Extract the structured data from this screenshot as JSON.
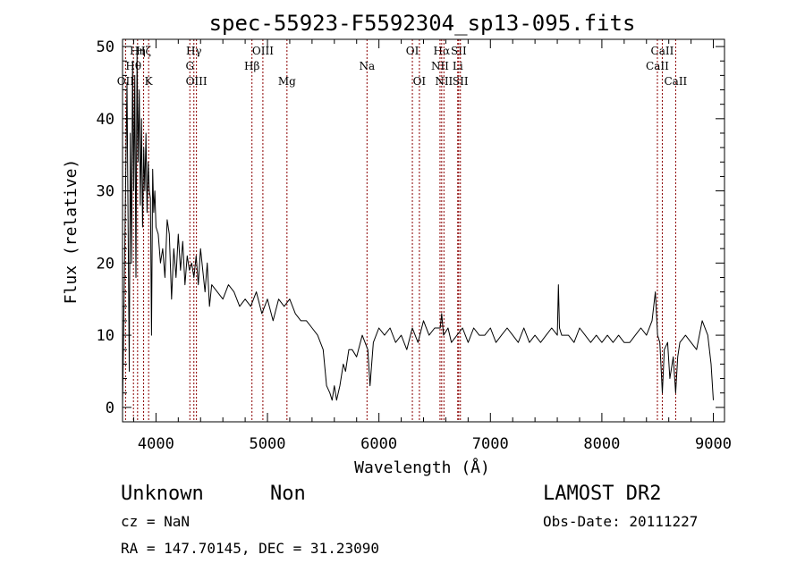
{
  "chart_data": {
    "type": "line",
    "title": "spec-55923-F5592304_sp13-095.fits",
    "xlabel": "Wavelength (Å)",
    "ylabel": "Flux (relative)",
    "xlim": [
      3700,
      9100
    ],
    "ylim": [
      -2,
      51
    ],
    "x_ticks": [
      "4000",
      "5000",
      "6000",
      "7000",
      "8000",
      "9000"
    ],
    "y_ticks": [
      "0",
      "10",
      "20",
      "30",
      "40",
      "50"
    ],
    "grid": false,
    "series": [
      {
        "x": [
          3700,
          3720,
          3740,
          3760,
          3770,
          3780,
          3790,
          3800,
          3810,
          3820,
          3830,
          3840,
          3850,
          3860,
          3870,
          3880,
          3890,
          3900,
          3910,
          3920,
          3930,
          3940,
          3950,
          3960,
          3970,
          3980,
          3990,
          4000,
          4020,
          4040,
          4060,
          4080,
          4100,
          4120,
          4140,
          4160,
          4180,
          4200,
          4220,
          4240,
          4260,
          4280,
          4300,
          4320,
          4340,
          4360,
          4380,
          4400,
          4420,
          4440,
          4460,
          4480,
          4500,
          4550,
          4600,
          4650,
          4700,
          4750,
          4800,
          4850,
          4900,
          4950,
          5000,
          5050,
          5100,
          5150,
          5200,
          5250,
          5300,
          5350,
          5400,
          5450,
          5500,
          5530,
          5560,
          5580,
          5600,
          5620,
          5650,
          5680,
          5700,
          5730,
          5760,
          5800,
          5850,
          5900,
          5920,
          5950,
          6000,
          6050,
          6100,
          6150,
          6200,
          6250,
          6300,
          6350,
          6400,
          6450,
          6500,
          6550,
          6563,
          6580,
          6620,
          6650,
          6700,
          6750,
          6800,
          6850,
          6900,
          6950,
          7000,
          7050,
          7100,
          7150,
          7200,
          7250,
          7300,
          7350,
          7400,
          7450,
          7500,
          7550,
          7600,
          7610,
          7620,
          7640,
          7700,
          7750,
          7800,
          7850,
          7900,
          7950,
          8000,
          8050,
          8100,
          8150,
          8200,
          8250,
          8300,
          8350,
          8400,
          8450,
          8480,
          8500,
          8520,
          8542,
          8560,
          8590,
          8610,
          8640,
          8662,
          8680,
          8700,
          8750,
          8800,
          8850,
          8900,
          8950,
          8980,
          9000
        ],
        "y": [
          0,
          22,
          45,
          5,
          38,
          20,
          48,
          30,
          46,
          18,
          49,
          34,
          44,
          28,
          40,
          25,
          36,
          30,
          38,
          27,
          34,
          30,
          29,
          10,
          33,
          27,
          30,
          25,
          24,
          20,
          22,
          18,
          26,
          24,
          15,
          22,
          18,
          24,
          19,
          23,
          17,
          21,
          19,
          20,
          18,
          21,
          17,
          22,
          19,
          16,
          20,
          14,
          17,
          16,
          15,
          17,
          16,
          14,
          15,
          14,
          16,
          13,
          15,
          12,
          15,
          14,
          15,
          13,
          12,
          12,
          11,
          10,
          8,
          3,
          2,
          1,
          3,
          1,
          3,
          6,
          5,
          8,
          8,
          7,
          10,
          8,
          3,
          9,
          11,
          10,
          11,
          9,
          10,
          8,
          11,
          9,
          12,
          10,
          11,
          11,
          13,
          10,
          11,
          9,
          10,
          11,
          9,
          11,
          10,
          10,
          11,
          9,
          10,
          11,
          10,
          9,
          11,
          9,
          10,
          9,
          10,
          11,
          10,
          17,
          11,
          10,
          10,
          9,
          11,
          10,
          9,
          10,
          9,
          10,
          9,
          10,
          9,
          9,
          10,
          11,
          10,
          12,
          16,
          10,
          9,
          2,
          8,
          9,
          4,
          7,
          2,
          7,
          9,
          10,
          9,
          8,
          12,
          10,
          6,
          1
        ]
      }
    ],
    "line_markers": [
      {
        "label": "OII",
        "x": 3727,
        "row": 3,
        "color": "#8b0000"
      },
      {
        "label": "Hθ",
        "x": 3798,
        "row": 2,
        "color": "#8b0000"
      },
      {
        "label": "Hη",
        "x": 3835,
        "row": 1,
        "color": "#8b0000"
      },
      {
        "label": "Hζ",
        "x": 3889,
        "row": 1,
        "color": "#8b0000"
      },
      {
        "label": "K",
        "x": 3934,
        "row": 3,
        "color": "#8b0000"
      },
      {
        "label": "Hγ",
        "x": 4340,
        "row": 1,
        "color": "#8b0000"
      },
      {
        "label": "G",
        "x": 4304,
        "row": 2,
        "color": "#8b0000"
      },
      {
        "label": "OIII",
        "x": 4363,
        "row": 3,
        "color": "#8b0000"
      },
      {
        "label": "Hβ",
        "x": 4861,
        "row": 2,
        "color": "#8b0000"
      },
      {
        "label": "OIII",
        "x": 4959,
        "row": 1,
        "color": "#8b0000"
      },
      {
        "label": "Mg",
        "x": 5175,
        "row": 3,
        "color": "#8b0000"
      },
      {
        "label": "Na",
        "x": 5893,
        "row": 2,
        "color": "#8b0000"
      },
      {
        "label": "OI",
        "x": 6300,
        "row": 1,
        "color": "#8b0000"
      },
      {
        "label": "OI",
        "x": 6363,
        "row": 3,
        "color": "#8b0000"
      },
      {
        "label": "Hα",
        "x": 6563,
        "row": 1,
        "color": "#8b0000"
      },
      {
        "label": "NII",
        "x": 6548,
        "row": 2,
        "color": "#8b0000"
      },
      {
        "label": "NII",
        "x": 6583,
        "row": 3,
        "color": "#8b0000"
      },
      {
        "label": "SII",
        "x": 6716,
        "row": 1,
        "color": "#8b0000"
      },
      {
        "label": "Li",
        "x": 6707,
        "row": 2,
        "color": "#8b0000"
      },
      {
        "label": "SII",
        "x": 6731,
        "row": 3,
        "color": "#8b0000"
      },
      {
        "label": "CaII",
        "x": 8542,
        "row": 1,
        "color": "#8b0000"
      },
      {
        "label": "CaII",
        "x": 8498,
        "row": 2,
        "color": "#8b0000"
      },
      {
        "label": "CaII",
        "x": 8662,
        "row": 3,
        "color": "#8b0000"
      }
    ]
  },
  "info": {
    "class": "Unknown",
    "subclass": "Non",
    "survey": "LAMOST DR2",
    "cz": "cz = NaN",
    "obs_date": "Obs-Date: 20111227",
    "coords": "RA = 147.70145, DEC =  31.23090"
  },
  "colors": {
    "spectrum": "#000000",
    "marker": "#8b0000",
    "background": "#ffffff"
  }
}
